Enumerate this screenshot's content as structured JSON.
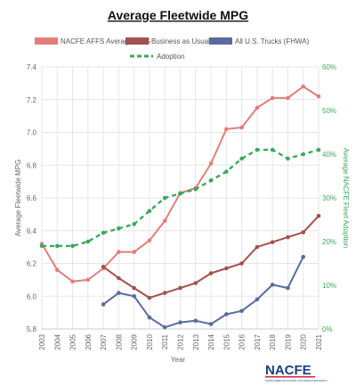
{
  "chart_data": {
    "type": "line",
    "title": "Average Fleetwide MPG",
    "x": [
      "2003",
      "2004",
      "2005",
      "2006",
      "2007",
      "2008",
      "2009",
      "2010",
      "2011",
      "2012",
      "2013",
      "2014",
      "2015",
      "2016",
      "2017",
      "2018",
      "2019",
      "2020",
      "2021"
    ],
    "xlabel": "Year",
    "ylabel": "Average Fleetwide MPG",
    "y2label": "Average NACFE Fleet Adoption",
    "ylim": [
      5.8,
      7.4
    ],
    "y2lim": [
      0,
      60
    ],
    "yticks": [
      "5.8",
      "6.0",
      "6.2",
      "6.4",
      "6.6",
      "6.8",
      "7.0",
      "7.2",
      "7.4"
    ],
    "y2ticks": [
      "0%",
      "10%",
      "20%",
      "30%",
      "40%",
      "50%",
      "60%"
    ],
    "grid": true,
    "legend_position": "top",
    "series": [
      {
        "name": "NACFE AFFS Average MPG",
        "axis": "left",
        "color": "#e07f79",
        "style": "solid",
        "values": [
          6.32,
          6.16,
          6.09,
          6.1,
          6.17,
          6.27,
          6.27,
          6.34,
          6.46,
          6.63,
          6.66,
          6.81,
          7.02,
          7.03,
          7.15,
          7.21,
          7.21,
          7.28,
          7.22
        ]
      },
      {
        "name": "Business as Usual",
        "axis": "left",
        "color": "#a3514f",
        "style": "solid",
        "values": [
          null,
          null,
          null,
          null,
          6.18,
          6.11,
          6.05,
          5.99,
          6.02,
          6.05,
          6.08,
          6.14,
          6.17,
          6.2,
          6.3,
          6.33,
          6.36,
          6.39,
          6.49
        ]
      },
      {
        "name": "All U.S. Trucks (FHWA)",
        "axis": "left",
        "color": "#5b6ba0",
        "style": "solid",
        "values": [
          null,
          null,
          null,
          null,
          5.95,
          6.02,
          6.0,
          5.87,
          5.81,
          5.84,
          5.85,
          5.83,
          5.89,
          5.91,
          5.98,
          6.07,
          6.05,
          6.24,
          null
        ]
      },
      {
        "name": "Adoption",
        "axis": "right",
        "color": "#3aa860",
        "style": "dashed",
        "values": [
          19,
          19,
          19,
          20,
          22,
          23,
          24,
          27,
          30,
          31,
          32,
          34,
          36,
          39,
          41,
          41,
          39,
          40,
          41
        ]
      }
    ]
  },
  "logo": {
    "text": "NACFE",
    "tagline": "NORTH AMERICAN COUNCIL FOR FREIGHT EFFICIENCY",
    "color": "#1c3f7d",
    "accent": "#d22630"
  }
}
